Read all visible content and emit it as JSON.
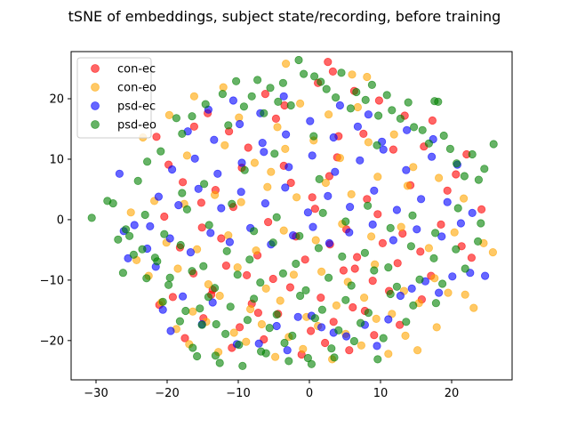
{
  "chart_data": {
    "type": "scatter",
    "title": "tSNE of embeddings, subject state/recording, before training",
    "xlabel": "",
    "ylabel": "",
    "xlim": [
      -33.5,
      28.5
    ],
    "ylim": [
      -26.5,
      27.8
    ],
    "xticks": [
      -30,
      -20,
      -10,
      0,
      10,
      20
    ],
    "yticks": [
      -20,
      -10,
      0,
      10,
      20
    ],
    "grid": false,
    "legend_position": "top-left",
    "series": [
      {
        "name": "con-ec",
        "color": "#ff0000",
        "x": [
          2.6,
          3.3,
          -21.5,
          -19.8,
          -14.3,
          -16.2,
          -6.2,
          -3.5,
          1.2,
          6.3,
          9.8,
          13.4,
          17.3,
          22.1,
          -11.3,
          -8.6,
          -4.7,
          4.1,
          7.6,
          11.8,
          16.1,
          20.6,
          -17.8,
          -13.2,
          -9.5,
          -2.6,
          3.9,
          8.1,
          14.2,
          19.4,
          -20.4,
          -15.1,
          -10.7,
          -5.8,
          0.8,
          5.2,
          9.6,
          13.1,
          18.5,
          24.2,
          -18.2,
          -12.4,
          -7.3,
          -1.9,
          2.9,
          6.7,
          10.3,
          15.6,
          21.4,
          -16.3,
          -11.7,
          -5.1,
          -0.6,
          4.8,
          8.9,
          12.4,
          17.1,
          -19.2,
          -13.6,
          -8.1,
          -2.7,
          1.6,
          6.1,
          11.2,
          15.8,
          -21.1,
          -14.9,
          -9.8,
          -4.4,
          0.2,
          3.4,
          7.8,
          12.7,
          -17.5,
          -10.9,
          -6.4,
          -1.1,
          2.2,
          5.6,
          9.1,
          -13.8,
          -8.8,
          0.4,
          2.8,
          6.4,
          -15.2,
          -3.6,
          -7.2,
          22.8
        ],
        "y": [
          26.1,
          24.5,
          13.7,
          9.1,
          17.6,
          15.4,
          20.8,
          18.9,
          22.6,
          21.3,
          19.7,
          17.2,
          16.4,
          10.8,
          14.6,
          11.9,
          16.7,
          13.8,
          14.2,
          11.6,
          12.1,
          7.5,
          6.2,
          4.9,
          8.6,
          6.1,
          10.3,
          3.4,
          5.7,
          4.8,
          0.5,
          -1.3,
          2.1,
          -0.4,
          1.8,
          -1.6,
          0.9,
          -2.3,
          -0.8,
          1.7,
          -4.6,
          -3.1,
          -5.9,
          -2.8,
          -4.1,
          -6.2,
          -3.9,
          -5.3,
          -4.4,
          -8.9,
          -7.6,
          -9.8,
          -6.6,
          -8.4,
          -10.1,
          -7.2,
          -9.3,
          -12.8,
          -11.6,
          -13.9,
          -11.2,
          -12.9,
          -14.5,
          -11.8,
          -13.2,
          -14.1,
          -16.3,
          -17.8,
          -15.6,
          -18.4,
          -16.9,
          -15.1,
          -17.4,
          -19.6,
          -21.2,
          -19.8,
          -22.3,
          -20.4,
          -21.6,
          -19.1,
          -12.4,
          -9.2,
          3.7,
          7.2,
          -8.1,
          2.8,
          8.9,
          -15.4,
          -6.3
        ]
      },
      {
        "name": "con-eo",
        "color": "#ffa500",
        "x": [
          -3.3,
          6.0,
          8.1,
          -12.1,
          -16.2,
          -19.7,
          -23.4,
          -25.1,
          -21.8,
          -17.6,
          -13.3,
          -9.6,
          -5.9,
          -1.8,
          2.3,
          5.9,
          9.6,
          13.8,
          18.2,
          21.7,
          25.8,
          -24.3,
          -20.1,
          -15.8,
          -11.4,
          -7.5,
          -3.6,
          0.9,
          4.6,
          8.7,
          12.9,
          16.8,
          20.4,
          24.5,
          -22.6,
          -18.5,
          -14.2,
          -10.1,
          -6.1,
          -2.2,
          1.7,
          5.4,
          9.2,
          13.3,
          17.6,
          21.9,
          -20.8,
          -16.4,
          -12.6,
          -8.3,
          -4.1,
          -0.4,
          3.8,
          7.7,
          11.6,
          15.4,
          19.5,
          23.1,
          -18.7,
          -14.5,
          -10.6,
          -6.7,
          -2.9,
          1.2,
          5.1,
          9.4,
          13.5,
          17.9,
          -16.9,
          -12.8,
          -8.9,
          -4.8,
          -0.9,
          3.2,
          7.3,
          11.1,
          15.2,
          -17.2,
          -11.9,
          -7.7,
          -3.4,
          0.6,
          4.3,
          8.3,
          -9.9,
          -4.5,
          2.7,
          -1.3,
          11.9,
          14.6,
          -5.4,
          6.8
        ],
        "y": [
          25.8,
          24.0,
          23.6,
          21.9,
          20.4,
          17.3,
          13.6,
          1.2,
          3.1,
          2.6,
          4.1,
          2.9,
          5.4,
          3.7,
          6.1,
          4.2,
          7.1,
          5.6,
          6.9,
          3.5,
          -5.4,
          -6.7,
          -3.8,
          -4.9,
          -2.6,
          -5.1,
          -1.8,
          -3.4,
          -0.7,
          -2.8,
          -1.2,
          -4.7,
          -2.1,
          -3.9,
          -9.3,
          -8.1,
          -10.7,
          -7.9,
          -11.4,
          -9.1,
          -8.6,
          -10.3,
          -7.4,
          -11.8,
          -9.7,
          -12.4,
          -13.7,
          -15.2,
          -12.6,
          -14.8,
          -13.4,
          -16.1,
          -14.2,
          -12.9,
          -15.6,
          -13.8,
          -12.1,
          -14.6,
          -18.1,
          -16.9,
          -18.7,
          -17.3,
          -19.4,
          -17.6,
          -18.9,
          -16.4,
          -19.2,
          -17.8,
          -20.6,
          -21.9,
          -20.2,
          -22.7,
          -21.4,
          -23.1,
          -20.8,
          -22.2,
          -21.6,
          10.6,
          12.3,
          9.4,
          11.7,
          13.1,
          10.2,
          12.8,
          16.9,
          15.3,
          17.4,
          19.2,
          14.1,
          8.7,
          7.9,
          18.6
        ]
      },
      {
        "name": "psd-ec",
        "color": "#0000ff",
        "x": [
          -26.7,
          -26.1,
          -25.5,
          -22.4,
          -21.6,
          -20.6,
          -19.5,
          -17.8,
          -15.1,
          -13.6,
          -10.2,
          -7.1,
          -4.6,
          -3.1,
          -1.6,
          0.3,
          1.7,
          3.4,
          5.2,
          7.8,
          9.5,
          11.1,
          12.8,
          14.4,
          16.3,
          18.2,
          20.1,
          22.6,
          24.7,
          -24.6,
          -22.8,
          -19.6,
          -16.7,
          -13.9,
          -11.2,
          -8.3,
          -5.4,
          -2.3,
          0.5,
          2.8,
          5.6,
          8.9,
          11.8,
          15.1,
          18.6,
          21.3,
          -21.2,
          -18.4,
          -15.6,
          -12.4,
          -9.6,
          -6.2,
          -3.4,
          -0.2,
          2.6,
          5.7,
          9.1,
          12.3,
          15.7,
          19.4,
          22.9,
          -19.3,
          -16.1,
          -12.9,
          -9.5,
          -6.4,
          -2.9,
          0.4,
          3.6,
          7.1,
          10.4,
          13.6,
          17.2,
          20.8,
          -17.1,
          -13.4,
          -9.8,
          -6.6,
          -3.3,
          0.1,
          3.4,
          6.8,
          10.2,
          13.7,
          17.4,
          -14.2,
          -10.7,
          -6.9,
          -3.6,
          4.3,
          8.3
        ],
        "y": [
          7.6,
          -1.9,
          -6.4,
          -1.1,
          -7.8,
          -14.9,
          -18.4,
          -12.7,
          -17.3,
          -13.7,
          -20.6,
          -20.5,
          -17.6,
          -21.6,
          -16.1,
          -15.9,
          -17.8,
          -18.7,
          -19.3,
          -17.4,
          -20.9,
          -16.5,
          -12.6,
          -11.4,
          -10.2,
          -12.1,
          -9.4,
          -8.8,
          -9.3,
          -0.9,
          -4.8,
          -3.1,
          -5.4,
          -2.2,
          -3.7,
          -1.4,
          -4.1,
          -2.6,
          -1.2,
          -3.9,
          -2.1,
          -0.8,
          -3.4,
          -1.6,
          -2.8,
          -0.6,
          3.8,
          2.4,
          5.1,
          1.9,
          4.6,
          2.7,
          5.3,
          1.2,
          3.9,
          2.1,
          4.8,
          1.6,
          3.4,
          2.9,
          1.1,
          8.3,
          10.1,
          7.6,
          9.4,
          11.2,
          8.7,
          10.6,
          7.9,
          9.8,
          11.6,
          8.2,
          10.4,
          9.1,
          14.6,
          13.2,
          15.8,
          12.7,
          14.1,
          16.3,
          13.6,
          15.4,
          12.9,
          14.8,
          13.3,
          18.2,
          19.7,
          17.6,
          20.4,
          18.9,
          17.4
        ]
      },
      {
        "name": "psd-eo",
        "color": "#008000",
        "x": [
          -30.6,
          -28.4,
          -27.6,
          -26.9,
          -26.2,
          -25.3,
          -24.1,
          -23.5,
          -22.8,
          -21.7,
          -20.9,
          -19.6,
          -18.7,
          -17.9,
          -16.5,
          -15.4,
          -14.6,
          -13.1,
          -12.2,
          -11.4,
          -10.3,
          -9.2,
          -8.1,
          -7.3,
          -6.4,
          -5.5,
          -4.4,
          -3.7,
          -2.6,
          -1.5,
          -0.8,
          0.7,
          1.6,
          2.4,
          3.7,
          4.5,
          5.8,
          6.6,
          7.9,
          8.8,
          9.7,
          10.9,
          11.6,
          12.8,
          13.9,
          14.7,
          15.9,
          16.8,
          17.6,
          18.9,
          19.8,
          20.7,
          21.8,
          22.9,
          23.8,
          24.6,
          25.9,
          -25.8,
          -23.1,
          -20.4,
          -17.2,
          -14.1,
          -10.9,
          -7.8,
          -4.6,
          -1.4,
          1.9,
          5.1,
          8.2,
          11.4,
          14.5,
          17.7,
          20.9,
          24.1,
          -24.7,
          -21.4,
          -18.1,
          -14.9,
          -11.6,
          -8.4,
          -5.1,
          -1.9,
          1.3,
          4.6,
          7.8,
          11.1,
          14.3,
          17.5,
          20.6,
          23.7,
          -22.9,
          -19.8,
          -16.5,
          -13.3,
          -10.1,
          -6.9,
          -3.7,
          -0.5,
          2.7,
          5.9,
          9.1,
          12.3,
          15.5,
          18.7,
          21.9,
          -20.6,
          -17.4,
          -14.2,
          -11.1,
          -7.8,
          -4.6,
          -1.3,
          1.8,
          5.1,
          8.3,
          11.4,
          14.6,
          17.8,
          -18.2,
          -15.1,
          -11.8,
          -8.7,
          -5.6,
          -2.4,
          0.8,
          4.1,
          7.2,
          10.4,
          13.6,
          -16.4,
          -13.2,
          -9.9,
          -6.8,
          -3.5,
          -0.2,
          3.1,
          6.3,
          9.6,
          -15.8,
          -12.6,
          -9.4,
          -6.1,
          -2.9,
          0.3,
          3.5,
          -17.9,
          -14.8,
          0.6,
          1.4,
          9.5,
          18.1,
          -9.1,
          -4.9
        ],
        "y": [
          0.3,
          3.1,
          2.7,
          -3.3,
          -8.8,
          -2.7,
          6.4,
          -4.9,
          9.6,
          -6.3,
          11.3,
          -9.6,
          16.8,
          14.2,
          17.1,
          -14.7,
          19.1,
          -17.3,
          20.8,
          15.6,
          22.9,
          18.7,
          20.4,
          23.1,
          17.6,
          21.8,
          19.5,
          22.6,
          18.9,
          26.4,
          24.1,
          23.7,
          22.8,
          21.6,
          20.2,
          24.3,
          18.4,
          21.1,
          19.8,
          22.3,
          17.2,
          20.6,
          18.1,
          16.7,
          19.4,
          15.3,
          14.8,
          12.6,
          19.6,
          13.9,
          11.7,
          9.3,
          7.2,
          10.8,
          6.6,
          8.4,
          12.5,
          -1.6,
          0.8,
          -2.4,
          1.7,
          -0.9,
          2.6,
          -1.9,
          0.4,
          -2.7,
          1.1,
          -0.3,
          2.3,
          -1.4,
          0.7,
          -2.2,
          1.9,
          -0.6,
          -5.8,
          -6.9,
          -4.2,
          -7.7,
          -5.2,
          -6.6,
          -3.8,
          -7.3,
          -4.7,
          -6.1,
          -5.5,
          -7.9,
          -4.4,
          -6.4,
          -4.9,
          -3.6,
          -9.7,
          -10.8,
          -8.5,
          -11.3,
          -9.1,
          -10.4,
          -8.9,
          -11.7,
          -9.6,
          -10.9,
          -8.4,
          -11.1,
          -9.9,
          -10.6,
          -8.1,
          -13.6,
          -15.1,
          -12.8,
          -14.4,
          -13.1,
          -15.7,
          -12.6,
          -14.9,
          -13.3,
          -15.4,
          -12.3,
          -14.2,
          -13.8,
          -16.8,
          -17.4,
          -18.9,
          -16.6,
          -17.9,
          -19.2,
          -16.3,
          -18.3,
          -17.1,
          -19.6,
          -16.9,
          -21.2,
          -22.5,
          -20.7,
          -21.8,
          -20.4,
          -22.9,
          -21.3,
          -20.1,
          -23.1,
          -22.6,
          -23.7,
          -24.2,
          -22.1,
          -23.4,
          -23.9,
          -22.8,
          4.4,
          5.9,
          13.8,
          6.7,
          12.3,
          19.5,
          8.2,
          10.9
        ]
      }
    ]
  }
}
